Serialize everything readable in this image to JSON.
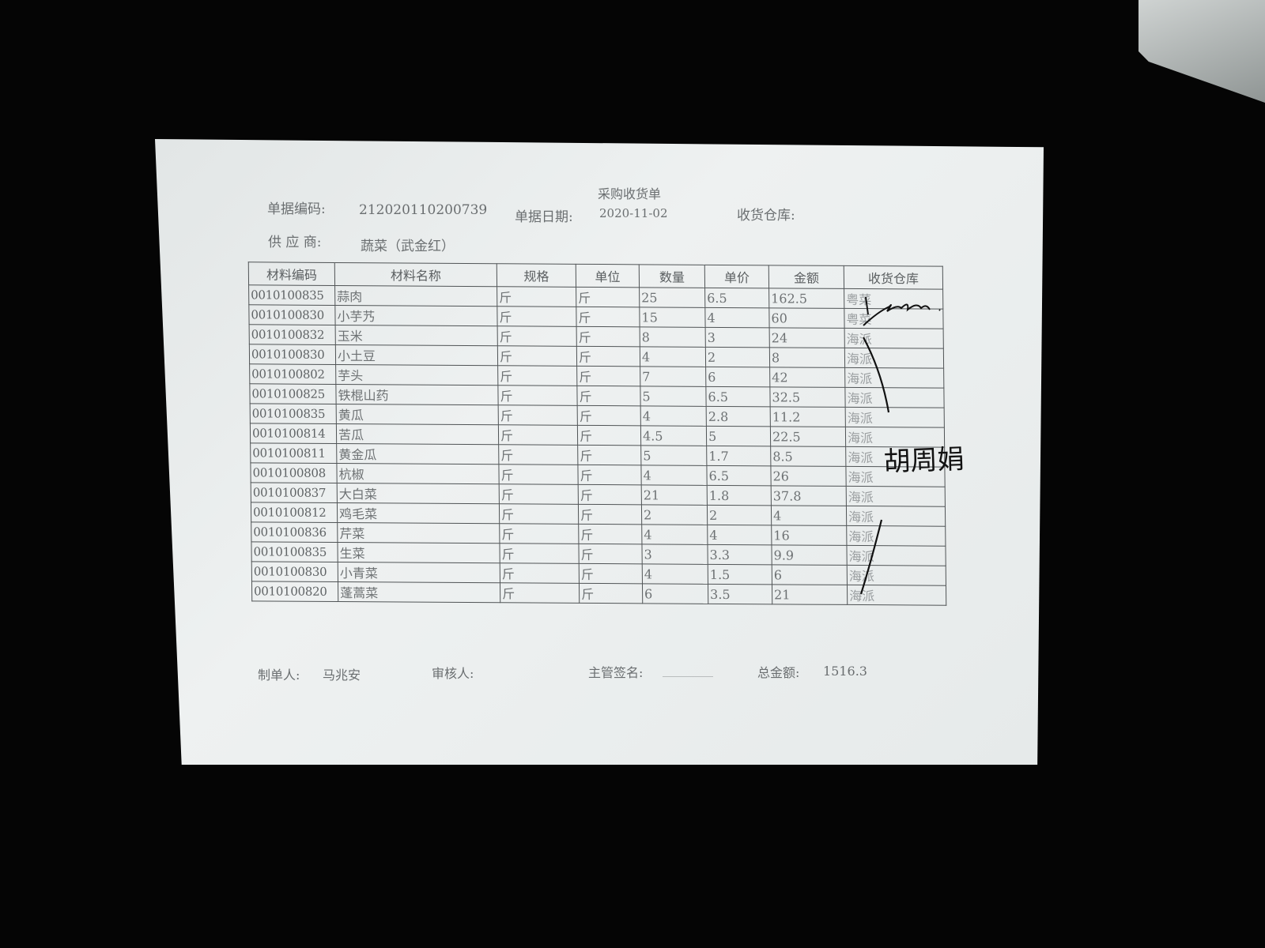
{
  "document": {
    "title": "采购收货单",
    "bill_no_label": "单据编码:",
    "bill_no": "212020110200739",
    "bill_date_label": "单据日期:",
    "bill_date": "2020-11-02",
    "warehouse_label": "收货仓库:",
    "supplier_label": "供 应 商:",
    "supplier": "蔬菜（武金红）"
  },
  "table": {
    "headers": [
      "材料编码",
      "材料名称",
      "规格",
      "单位",
      "数量",
      "单价",
      "金额",
      "收货仓库"
    ],
    "rows": [
      [
        "0010100835",
        "蒜肉",
        "斤",
        "斤",
        "25",
        "6.5",
        "162.5",
        "粤菜"
      ],
      [
        "0010100830",
        "小芋艿",
        "斤",
        "斤",
        "15",
        "4",
        "60",
        "粤菜"
      ],
      [
        "0010100832",
        "玉米",
        "斤",
        "斤",
        "8",
        "3",
        "24",
        "海派"
      ],
      [
        "0010100830",
        "小土豆",
        "斤",
        "斤",
        "4",
        "2",
        "8",
        "海派"
      ],
      [
        "0010100802",
        "芋头",
        "斤",
        "斤",
        "7",
        "6",
        "42",
        "海派"
      ],
      [
        "0010100825",
        "铁棍山药",
        "斤",
        "斤",
        "5",
        "6.5",
        "32.5",
        "海派"
      ],
      [
        "0010100835",
        "黄瓜",
        "斤",
        "斤",
        "4",
        "2.8",
        "11.2",
        "海派"
      ],
      [
        "0010100814",
        "苦瓜",
        "斤",
        "斤",
        "4.5",
        "5",
        "22.5",
        "海派"
      ],
      [
        "0010100811",
        "黄金瓜",
        "斤",
        "斤",
        "5",
        "1.7",
        "8.5",
        "海派"
      ],
      [
        "0010100808",
        "杭椒",
        "斤",
        "斤",
        "4",
        "6.5",
        "26",
        "海派"
      ],
      [
        "0010100837",
        "大白菜",
        "斤",
        "斤",
        "21",
        "1.8",
        "37.8",
        "海派"
      ],
      [
        "0010100812",
        "鸡毛菜",
        "斤",
        "斤",
        "2",
        "2",
        "4",
        "海派"
      ],
      [
        "0010100836",
        "芹菜",
        "斤",
        "斤",
        "4",
        "4",
        "16",
        "海派"
      ],
      [
        "0010100835",
        "生菜",
        "斤",
        "斤",
        "3",
        "3.3",
        "9.9",
        "海派"
      ],
      [
        "0010100830",
        "小青菜",
        "斤",
        "斤",
        "4",
        "1.5",
        "6",
        "海派"
      ],
      [
        "0010100820",
        "蓬蒿菜",
        "斤",
        "斤",
        "6",
        "3.5",
        "21",
        "海派"
      ]
    ]
  },
  "footer": {
    "maker_label": "制单人:",
    "maker": "马兆安",
    "reviewer_label": "审核人:",
    "supervisor_label": "主管签名:",
    "supervisor_blank": "________",
    "total_label": "总金额:",
    "total": "1516.3"
  },
  "handwriting": [
    "signature-scribble",
    "胡周娟"
  ],
  "colors": {
    "background": "#050505",
    "paper": "#e8ecec",
    "ink": "#111111",
    "print": "#6a6e70"
  }
}
